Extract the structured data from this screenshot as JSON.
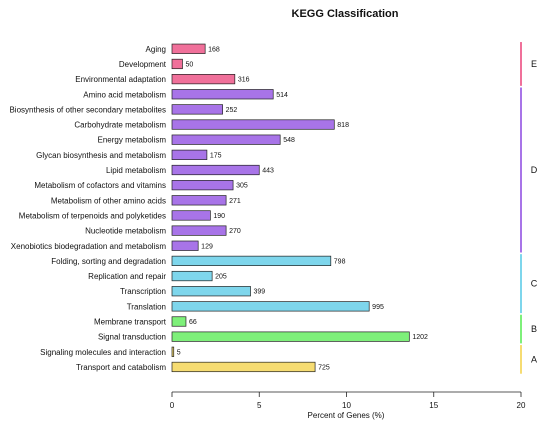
{
  "chart_data": {
    "type": "bar",
    "orientation": "horizontal",
    "title": "KEGG Classification",
    "xlabel": "Percent of Genes (%)",
    "ylabel": "",
    "xlim": [
      0,
      20
    ],
    "xticks": [
      "0",
      "5",
      "10",
      "15",
      "20"
    ],
    "grid": false,
    "legend": "none",
    "categories": [
      "Aging",
      "Development",
      "Environmental adaptation",
      "Amino acid metabolism",
      "Biosynthesis of other secondary metabolites",
      "Carbohydrate metabolism",
      "Energy metabolism",
      "Glycan biosynthesis and metabolism",
      "Lipid metabolism",
      "Metabolism of cofactors and vitamins",
      "Metabolism of other amino acids",
      "Metabolism of terpenoids and polyketides",
      "Nucleotide metabolism",
      "Xenobiotics biodegradation and metabolism",
      "Folding, sorting and degradation",
      "Replication and repair",
      "Transcription",
      "Translation",
      "Membrane transport",
      "Signal transduction",
      "Signaling molecules and interaction",
      "Transport and catabolism"
    ],
    "gene_counts": [
      168,
      50,
      316,
      514,
      252,
      818,
      548,
      175,
      443,
      305,
      271,
      190,
      270,
      129,
      798,
      205,
      399,
      995,
      66,
      1202,
      5,
      725
    ],
    "percent_values": [
      1.9,
      0.6,
      3.6,
      5.8,
      2.9,
      9.3,
      6.2,
      2.0,
      5.0,
      3.5,
      3.1,
      2.2,
      3.1,
      1.5,
      9.1,
      2.3,
      4.5,
      11.3,
      0.8,
      13.6,
      0.1,
      8.2
    ],
    "groups": [
      {
        "label": "E",
        "start": 0,
        "end": 2,
        "color": "#f0709a"
      },
      {
        "label": "D",
        "start": 3,
        "end": 13,
        "color": "#a874e8"
      },
      {
        "label": "C",
        "start": 14,
        "end": 17,
        "color": "#7ed6ec"
      },
      {
        "label": "B",
        "start": 18,
        "end": 19,
        "color": "#7ef07a"
      },
      {
        "label": "A",
        "start": 20,
        "end": 21,
        "color": "#f6dc72"
      }
    ]
  }
}
